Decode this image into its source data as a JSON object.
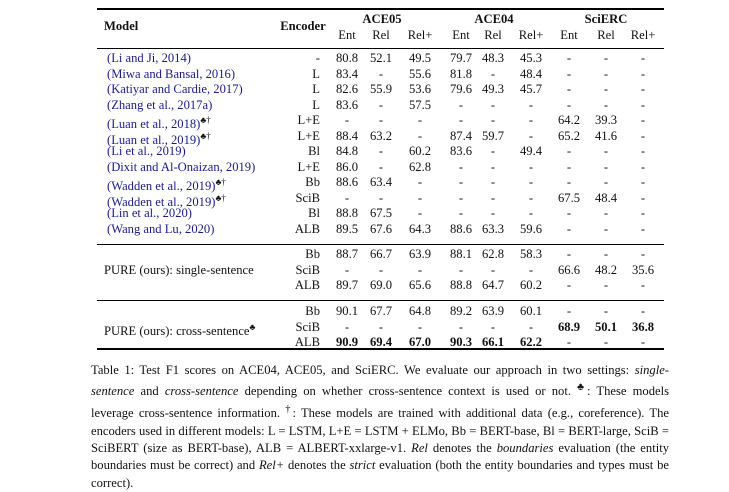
{
  "header": {
    "model": "Model",
    "encoder": "Encoder",
    "groups": [
      "ACE05",
      "ACE04",
      "SciERC"
    ],
    "subcols": [
      "Ent",
      "Rel",
      "Rel+",
      "Ent",
      "Rel",
      "Rel+",
      "Ent",
      "Rel",
      "Rel+"
    ]
  },
  "baselines": [
    {
      "model": "(Li and Ji, 2014)",
      "mark": "",
      "encoder": "-",
      "values": [
        "80.8",
        "52.1",
        "49.5",
        "79.7",
        "48.3",
        "45.3",
        "-",
        "-",
        "-"
      ]
    },
    {
      "model": "(Miwa and Bansal, 2016)",
      "mark": "",
      "encoder": "L",
      "values": [
        "83.4",
        "-",
        "55.6",
        "81.8",
        "-",
        "48.4",
        "-",
        "-",
        "-"
      ]
    },
    {
      "model": "(Katiyar and Cardie, 2017)",
      "mark": "",
      "encoder": "L",
      "values": [
        "82.6",
        "55.9",
        "53.6",
        "79.6",
        "49.3",
        "45.7",
        "-",
        "-",
        "-"
      ]
    },
    {
      "model": "(Zhang et al., 2017a)",
      "mark": "",
      "encoder": "L",
      "values": [
        "83.6",
        "-",
        "57.5",
        "-",
        "-",
        "-",
        "-",
        "-",
        "-"
      ]
    },
    {
      "model": "(Luan et al., 2018)",
      "mark": "♣†",
      "encoder": "L+E",
      "values": [
        "-",
        "-",
        "-",
        "-",
        "-",
        "-",
        "64.2",
        "39.3",
        "-"
      ]
    },
    {
      "model": "(Luan et al., 2019)",
      "mark": "♣†",
      "encoder": "L+E",
      "values": [
        "88.4",
        "63.2",
        "-",
        "87.4",
        "59.7",
        "-",
        "65.2",
        "41.6",
        "-"
      ]
    },
    {
      "model": "(Li et al., 2019)",
      "mark": "",
      "encoder": "Bl",
      "values": [
        "84.8",
        "-",
        "60.2",
        "83.6",
        "-",
        "49.4",
        "-",
        "-",
        "-"
      ]
    },
    {
      "model": "(Dixit and Al-Onaizan, 2019)",
      "mark": "",
      "encoder": "L+E",
      "values": [
        "86.0",
        "-",
        "62.8",
        "-",
        "-",
        "-",
        "-",
        "-",
        "-"
      ]
    },
    {
      "model": "(Wadden et al., 2019)",
      "mark": "♣†",
      "encoder": "Bb",
      "values": [
        "88.6",
        "63.4",
        "-",
        "-",
        "-",
        "-",
        "-",
        "-",
        "-"
      ]
    },
    {
      "model": "(Wadden et al., 2019)",
      "mark": "♣†",
      "encoder": "SciB",
      "values": [
        "-",
        "-",
        "-",
        "-",
        "-",
        "-",
        "67.5",
        "48.4",
        "-"
      ]
    },
    {
      "model": "(Lin et al., 2020)",
      "mark": "",
      "encoder": "Bl",
      "values": [
        "88.8",
        "67.5",
        "-",
        "-",
        "-",
        "-",
        "-",
        "-",
        "-"
      ]
    },
    {
      "model": "(Wang and Lu, 2020)",
      "mark": "",
      "encoder": "ALB",
      "values": [
        "89.5",
        "67.6",
        "64.3",
        "88.6",
        "63.3",
        "59.6",
        "-",
        "-",
        "-"
      ]
    }
  ],
  "pure_single": {
    "label": "PURE (ours): single-sentence",
    "mark": "",
    "rows": [
      {
        "encoder": "Bb",
        "values": [
          "88.7",
          "66.7",
          "63.9",
          "88.1",
          "62.8",
          "58.3",
          "-",
          "-",
          "-"
        ]
      },
      {
        "encoder": "SciB",
        "values": [
          "-",
          "-",
          "-",
          "-",
          "-",
          "-",
          "66.6",
          "48.2",
          "35.6"
        ]
      },
      {
        "encoder": "ALB",
        "values": [
          "89.7",
          "69.0",
          "65.6",
          "88.8",
          "64.7",
          "60.2",
          "-",
          "-",
          "-"
        ]
      }
    ]
  },
  "pure_cross": {
    "label": "PURE (ours): cross-sentence",
    "mark": "♣",
    "rows": [
      {
        "encoder": "Bb",
        "values": [
          "90.1",
          "67.7",
          "64.8",
          "89.2",
          "63.9",
          "60.1",
          "-",
          "-",
          "-"
        ]
      },
      {
        "encoder": "SciB",
        "values": [
          "-",
          "-",
          "-",
          "-",
          "-",
          "-",
          "68.9",
          "50.1",
          "36.8"
        ]
      },
      {
        "encoder": "ALB",
        "values": [
          "90.9",
          "69.4",
          "67.0",
          "90.3",
          "66.1",
          "62.2",
          "-",
          "-",
          "-"
        ]
      }
    ]
  },
  "caption": {
    "t1": "Table 1: Test F1 scores on ACE04, ACE05, and SciERC. We evaluate our approach in two settings: ",
    "i1": "single-sentence",
    "t2": " and ",
    "i2": "cross-sentence",
    "t3": " depending on whether cross-sentence context is used or not. ",
    "club": "♣",
    "t4": ": These models leverage cross-sentence information. ",
    "dagger": "†",
    "t5": ": These models are trained with additional data (e.g., coreference). The encoders used in different models: L = LSTM, L+E = LSTM + ELMo, Bb = BERT-base, Bl = BERT-large, SciB = SciBERT (size as BERT-base), ALB = ALBERT-xxlarge-v1. ",
    "i3": "Rel",
    "t6": " denotes the ",
    "i4": "boundaries",
    "t7": " evaluation (the entity boundaries must be correct) and ",
    "i5": "Rel+",
    "t8": " denotes the ",
    "i6": "strict",
    "t9": " evaluation (both the entity boundaries and types must be correct)."
  }
}
